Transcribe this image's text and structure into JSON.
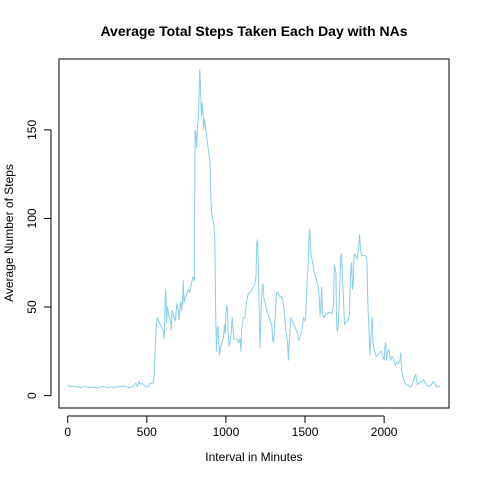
{
  "chart_data": {
    "type": "line",
    "title": "Average Total Steps Taken Each Day with NAs",
    "xlabel": "Interval in Minutes",
    "ylabel": "Average Number of Steps",
    "xlim": [
      -55,
      2410
    ],
    "ylim": [
      -7,
      190
    ],
    "x_ticks": [
      0,
      500,
      1000,
      1500,
      2000
    ],
    "y_ticks": [
      0,
      50,
      100,
      150
    ],
    "grid": false,
    "legend": "none",
    "series_color": "#87CEEB",
    "series": [
      {
        "values": [
          [
            0,
            6
          ],
          [
            15,
            5
          ],
          [
            30,
            5.5
          ],
          [
            45,
            5
          ],
          [
            60,
            5
          ],
          [
            80,
            4.5
          ],
          [
            100,
            5
          ],
          [
            120,
            5
          ],
          [
            135,
            4.5
          ],
          [
            150,
            5
          ],
          [
            170,
            4.5
          ],
          [
            190,
            4.5
          ],
          [
            210,
            5
          ],
          [
            230,
            5
          ],
          [
            250,
            4.5
          ],
          [
            270,
            5
          ],
          [
            290,
            4.5
          ],
          [
            310,
            5
          ],
          [
            330,
            5
          ],
          [
            350,
            5.5
          ],
          [
            370,
            5
          ],
          [
            390,
            4.5
          ],
          [
            410,
            5
          ],
          [
            420,
            6
          ],
          [
            430,
            7
          ],
          [
            440,
            5
          ],
          [
            450,
            8
          ],
          [
            460,
            6
          ],
          [
            470,
            7
          ],
          [
            480,
            6
          ],
          [
            490,
            5
          ],
          [
            505,
            5
          ],
          [
            510,
            5
          ],
          [
            520,
            7
          ],
          [
            530,
            7
          ],
          [
            540,
            7
          ],
          [
            545,
            10
          ],
          [
            550,
            20
          ],
          [
            555,
            30
          ],
          [
            560,
            39
          ],
          [
            565,
            44
          ],
          [
            575,
            42
          ],
          [
            585,
            40
          ],
          [
            595,
            38
          ],
          [
            605,
            36
          ],
          [
            610,
            32
          ],
          [
            615,
            52
          ],
          [
            620,
            60
          ],
          [
            625,
            41
          ],
          [
            630,
            50
          ],
          [
            640,
            45
          ],
          [
            650,
            42
          ],
          [
            655,
            37
          ],
          [
            660,
            48
          ],
          [
            670,
            45
          ],
          [
            680,
            42
          ],
          [
            690,
            52
          ],
          [
            700,
            47
          ],
          [
            705,
            43
          ],
          [
            710,
            50
          ],
          [
            715,
            53
          ],
          [
            720,
            48
          ],
          [
            725,
            53
          ],
          [
            730,
            65
          ],
          [
            735,
            52
          ],
          [
            740,
            55
          ],
          [
            750,
            57
          ],
          [
            760,
            60
          ],
          [
            770,
            58
          ],
          [
            780,
            62
          ],
          [
            790,
            67
          ],
          [
            795,
            66
          ],
          [
            800,
            65
          ],
          [
            805,
            150
          ],
          [
            810,
            148
          ],
          [
            815,
            140
          ],
          [
            820,
            151
          ],
          [
            825,
            156
          ],
          [
            830,
            168
          ],
          [
            835,
            184
          ],
          [
            840,
            172
          ],
          [
            845,
            158
          ],
          [
            850,
            165
          ],
          [
            855,
            160
          ],
          [
            860,
            150
          ],
          [
            865,
            156
          ],
          [
            870,
            152
          ],
          [
            880,
            145
          ],
          [
            890,
            138
          ],
          [
            900,
            131
          ],
          [
            905,
            110
          ],
          [
            910,
            104
          ],
          [
            915,
            100
          ],
          [
            920,
            98
          ],
          [
            925,
            96
          ],
          [
            930,
            88
          ],
          [
            935,
            48
          ],
          [
            940,
            25
          ],
          [
            945,
            38
          ],
          [
            950,
            39
          ],
          [
            955,
            30
          ],
          [
            960,
            23
          ],
          [
            965,
            27
          ],
          [
            975,
            30
          ],
          [
            985,
            33
          ],
          [
            990,
            40
          ],
          [
            995,
            35
          ],
          [
            1000,
            45
          ],
          [
            1005,
            51
          ],
          [
            1010,
            49
          ],
          [
            1015,
            33
          ],
          [
            1020,
            28
          ],
          [
            1030,
            32
          ],
          [
            1040,
            44
          ],
          [
            1050,
            32
          ],
          [
            1060,
            32
          ],
          [
            1070,
            32
          ],
          [
            1080,
            30
          ],
          [
            1090,
            32
          ],
          [
            1095,
            25
          ],
          [
            1100,
            38
          ],
          [
            1110,
            44
          ],
          [
            1120,
            44
          ],
          [
            1130,
            53
          ],
          [
            1140,
            57
          ],
          [
            1150,
            58
          ],
          [
            1160,
            59
          ],
          [
            1170,
            61
          ],
          [
            1180,
            62
          ],
          [
            1190,
            67
          ],
          [
            1195,
            86
          ],
          [
            1200,
            88
          ],
          [
            1205,
            75
          ],
          [
            1210,
            50
          ],
          [
            1215,
            27
          ],
          [
            1220,
            40
          ],
          [
            1225,
            55
          ],
          [
            1230,
            62
          ],
          [
            1235,
            63
          ],
          [
            1240,
            55
          ],
          [
            1250,
            52
          ],
          [
            1260,
            47
          ],
          [
            1270,
            45
          ],
          [
            1280,
            42
          ],
          [
            1290,
            40
          ],
          [
            1295,
            32
          ],
          [
            1300,
            30
          ],
          [
            1305,
            35
          ],
          [
            1310,
            43
          ],
          [
            1315,
            50
          ],
          [
            1320,
            58
          ],
          [
            1330,
            58
          ],
          [
            1340,
            56
          ],
          [
            1350,
            56
          ],
          [
            1360,
            54
          ],
          [
            1370,
            46
          ],
          [
            1380,
            36
          ],
          [
            1390,
            30
          ],
          [
            1395,
            20
          ],
          [
            1400,
            30
          ],
          [
            1410,
            44
          ],
          [
            1420,
            42
          ],
          [
            1430,
            40
          ],
          [
            1440,
            38
          ],
          [
            1450,
            36
          ],
          [
            1455,
            33
          ],
          [
            1460,
            31
          ],
          [
            1470,
            34
          ],
          [
            1480,
            36
          ],
          [
            1490,
            44
          ],
          [
            1500,
            42
          ],
          [
            1505,
            46
          ],
          [
            1510,
            57
          ],
          [
            1515,
            68
          ],
          [
            1520,
            74
          ],
          [
            1525,
            88
          ],
          [
            1530,
            94
          ],
          [
            1535,
            83
          ],
          [
            1540,
            78
          ],
          [
            1545,
            77
          ],
          [
            1550,
            74
          ],
          [
            1555,
            71
          ],
          [
            1560,
            69
          ],
          [
            1570,
            66
          ],
          [
            1580,
            63
          ],
          [
            1585,
            60
          ],
          [
            1590,
            55
          ],
          [
            1595,
            45
          ],
          [
            1600,
            50
          ],
          [
            1605,
            61
          ],
          [
            1610,
            46
          ],
          [
            1620,
            44
          ],
          [
            1630,
            46
          ],
          [
            1640,
            46
          ],
          [
            1650,
            47
          ],
          [
            1660,
            47
          ],
          [
            1670,
            46
          ],
          [
            1680,
            51
          ],
          [
            1685,
            74
          ],
          [
            1690,
            72
          ],
          [
            1695,
            69
          ],
          [
            1700,
            39
          ],
          [
            1705,
            36
          ],
          [
            1710,
            40
          ],
          [
            1715,
            50
          ],
          [
            1720,
            60
          ],
          [
            1725,
            78
          ],
          [
            1730,
            80
          ],
          [
            1735,
            70
          ],
          [
            1740,
            61
          ],
          [
            1745,
            50
          ],
          [
            1750,
            40
          ],
          [
            1760,
            42
          ],
          [
            1770,
            42
          ],
          [
            1780,
            46
          ],
          [
            1785,
            60
          ],
          [
            1790,
            72
          ],
          [
            1795,
            75
          ],
          [
            1800,
            60
          ],
          [
            1805,
            63
          ],
          [
            1810,
            80
          ],
          [
            1820,
            79
          ],
          [
            1830,
            77
          ],
          [
            1840,
            85
          ],
          [
            1845,
            91
          ],
          [
            1850,
            83
          ],
          [
            1855,
            80
          ],
          [
            1860,
            79
          ],
          [
            1870,
            79
          ],
          [
            1880,
            79
          ],
          [
            1890,
            78
          ],
          [
            1895,
            60
          ],
          [
            1900,
            45
          ],
          [
            1905,
            35
          ],
          [
            1910,
            23
          ],
          [
            1915,
            30
          ],
          [
            1920,
            38
          ],
          [
            1925,
            44
          ],
          [
            1930,
            30
          ],
          [
            1940,
            25
          ],
          [
            1950,
            22
          ],
          [
            1960,
            23
          ],
          [
            1970,
            24
          ],
          [
            1980,
            25
          ],
          [
            1990,
            23
          ],
          [
            2000,
            20
          ],
          [
            2005,
            28
          ],
          [
            2010,
            30
          ],
          [
            2015,
            20
          ],
          [
            2020,
            24
          ],
          [
            2030,
            26
          ],
          [
            2040,
            20
          ],
          [
            2050,
            22
          ],
          [
            2060,
            21
          ],
          [
            2070,
            17
          ],
          [
            2080,
            19
          ],
          [
            2090,
            18
          ],
          [
            2100,
            20
          ],
          [
            2105,
            24
          ],
          [
            2110,
            15
          ],
          [
            2115,
            12
          ],
          [
            2120,
            10
          ],
          [
            2130,
            8
          ],
          [
            2140,
            6
          ],
          [
            2150,
            6
          ],
          [
            2160,
            5
          ],
          [
            2170,
            5
          ],
          [
            2180,
            7
          ],
          [
            2190,
            10
          ],
          [
            2200,
            12
          ],
          [
            2210,
            6
          ],
          [
            2220,
            7
          ],
          [
            2230,
            8
          ],
          [
            2240,
            8
          ],
          [
            2250,
            9
          ],
          [
            2260,
            7
          ],
          [
            2270,
            6
          ],
          [
            2280,
            5
          ],
          [
            2290,
            6
          ],
          [
            2300,
            6
          ],
          [
            2310,
            8
          ],
          [
            2320,
            7
          ],
          [
            2330,
            5
          ],
          [
            2340,
            5
          ],
          [
            2355,
            5
          ]
        ]
      }
    ]
  }
}
